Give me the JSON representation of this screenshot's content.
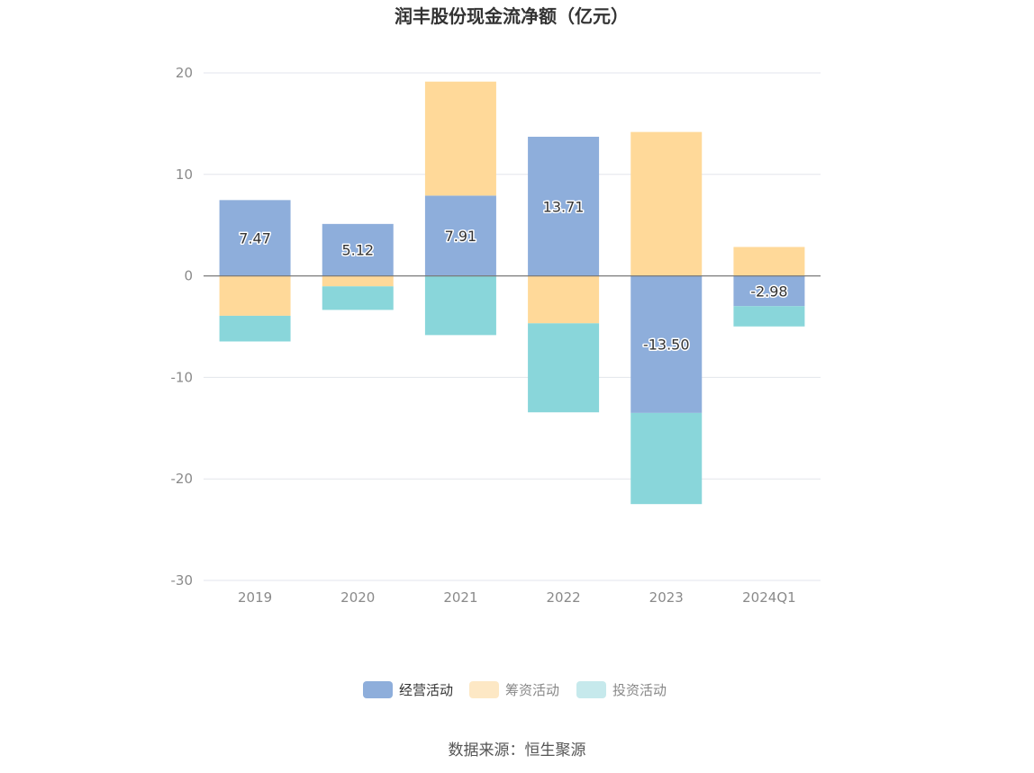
{
  "chart_data": {
    "type": "bar",
    "stacked": true,
    "title": "润丰股份现金流净额（亿元）",
    "categories": [
      "2019",
      "2020",
      "2021",
      "2022",
      "2023",
      "2024Q1"
    ],
    "ylim": [
      -30,
      20
    ],
    "yticks": [
      20,
      10,
      0,
      -10,
      -20,
      -30
    ],
    "grid": true,
    "legend_position": "bottom",
    "series": [
      {
        "name": "经营活动",
        "color": "#8eaedb",
        "values": [
          7.47,
          5.12,
          7.91,
          13.71,
          -13.5,
          -2.98
        ],
        "labels": [
          "7.47",
          "5.12",
          "7.91",
          "13.71",
          "-13.50",
          "-2.98"
        ]
      },
      {
        "name": "筹资活动",
        "color": "#ffd999",
        "values": [
          -3.93,
          -1.03,
          11.23,
          -4.67,
          14.18,
          2.85
        ]
      },
      {
        "name": "投资活动",
        "color": "#89d6da",
        "values": [
          -2.53,
          -2.32,
          -5.83,
          -8.77,
          -8.98,
          -2.0
        ]
      }
    ],
    "legend_colors": [
      "#8eaedb",
      "#fde8c5",
      "#c6e9ec"
    ],
    "legend_text_colors": [
      "#333333",
      "#888888",
      "#888888"
    ]
  },
  "source": "数据来源：恒生聚源"
}
